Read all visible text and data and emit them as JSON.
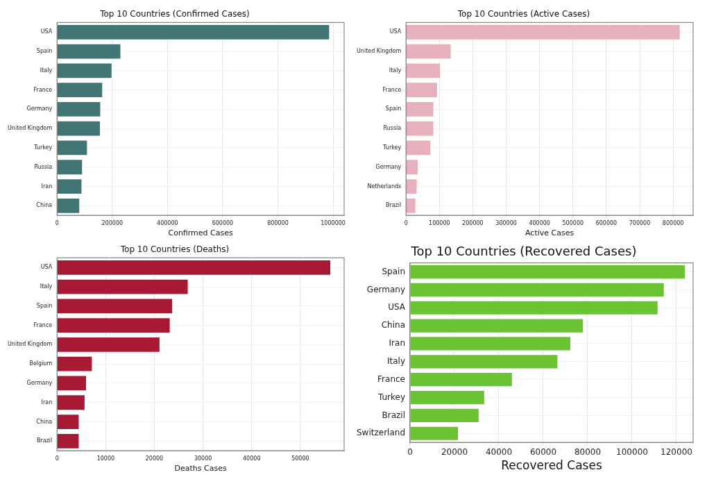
{
  "chart_data": [
    {
      "type": "bar",
      "orientation": "horizontal",
      "title": "Top 10 Countries (Confirmed Cases)",
      "xlabel": "Confirmed Cases",
      "categories": [
        "USA",
        "Spain",
        "Italy",
        "France",
        "Germany",
        "United Kingdom",
        "Turkey",
        "Russia",
        "Iran",
        "China"
      ],
      "values": [
        988000,
        232000,
        200000,
        166000,
        159000,
        158000,
        111000,
        93000,
        91000,
        83000
      ],
      "color": "#417674",
      "xlim": [
        0,
        1040000
      ],
      "xticks": [
        0,
        200000,
        400000,
        600000,
        800000,
        1000000
      ],
      "grid": true
    },
    {
      "type": "bar",
      "orientation": "horizontal",
      "title": "Top 10 Countries (Active Cases)",
      "xlabel": "Active Cases",
      "categories": [
        "USA",
        "United Kingdom",
        "Italy",
        "France",
        "Spain",
        "Russia",
        "Turkey",
        "Germany",
        "Netherlands",
        "Brazil"
      ],
      "values": [
        822000,
        136000,
        104000,
        95000,
        84000,
        84000,
        75000,
        37000,
        34000,
        30000
      ],
      "color": "#e6b0bd",
      "xlim": [
        0,
        860000
      ],
      "xticks": [
        0,
        100000,
        200000,
        300000,
        400000,
        500000,
        600000,
        700000,
        800000
      ],
      "grid": true
    },
    {
      "type": "bar",
      "orientation": "horizontal",
      "title": "Top 10 Countries (Deaths)",
      "xlabel": "Deaths Cases",
      "categories": [
        "USA",
        "Italy",
        "Spain",
        "France",
        "United Kingdom",
        "Belgium",
        "Germany",
        "Iran",
        "China",
        "Brazil"
      ],
      "values": [
        56300,
        27000,
        23800,
        23300,
        21200,
        7300,
        6100,
        5800,
        4600,
        4600
      ],
      "color": "#a81a33",
      "xlim": [
        0,
        59000
      ],
      "xticks": [
        0,
        10000,
        20000,
        30000,
        40000,
        50000
      ],
      "grid": true
    },
    {
      "type": "bar",
      "orientation": "horizontal",
      "title": "Top 10 Countries (Recovered Cases)",
      "xlabel": "Recovered Cases",
      "categories": [
        "Spain",
        "Germany",
        "USA",
        "China",
        "Iran",
        "Italy",
        "France",
        "Turkey",
        "Brazil",
        "Switzerland"
      ],
      "values": [
        124100,
        114600,
        111800,
        78200,
        72500,
        66700,
        46200,
        33700,
        31200,
        21900
      ],
      "color": "#6bc334",
      "xlim": [
        0,
        127500
      ],
      "xticks": [
        0,
        20000,
        40000,
        60000,
        80000,
        100000,
        120000
      ],
      "grid": true
    }
  ]
}
